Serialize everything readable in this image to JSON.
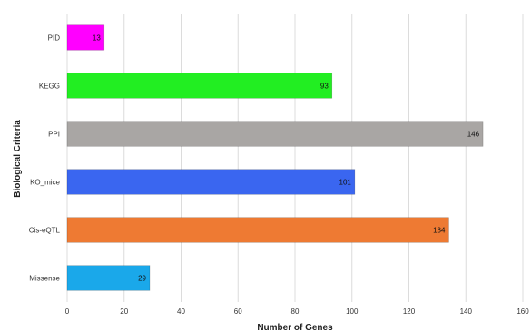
{
  "chart_data": {
    "type": "bar",
    "orientation": "horizontal",
    "categories": [
      "PID",
      "KEGG",
      "PPI",
      "KO_mice",
      "Cis-eQTL",
      "Missense"
    ],
    "values": [
      13,
      93,
      146,
      101,
      134,
      29
    ],
    "data_labels": [
      "13",
      "93",
      "146",
      "101",
      "134",
      "29"
    ],
    "bar_colors": [
      "#ff00ff",
      "#22ee22",
      "#a9a6a4",
      "#3a66f0",
      "#ee7a33",
      "#1aa8ea"
    ],
    "xlabel": "Number of Genes",
    "ylabel": "Biological Criteria",
    "xlim": [
      0,
      160
    ],
    "x_ticks": [
      "0",
      "20",
      "40",
      "60",
      "80",
      "100",
      "120",
      "140",
      "160"
    ],
    "grid": true
  }
}
